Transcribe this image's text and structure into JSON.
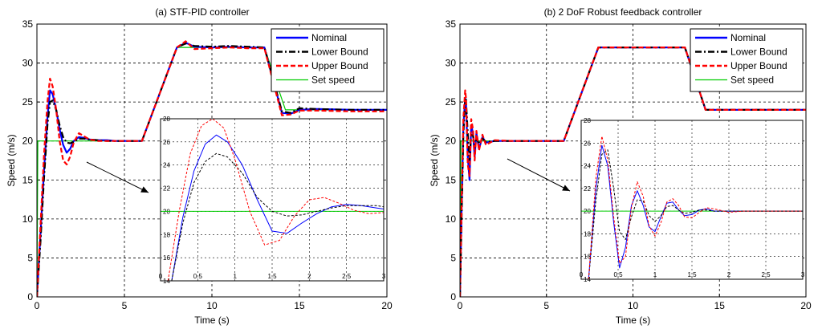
{
  "chart_data": [
    {
      "type": "line",
      "title": "(a) STF-PID controller",
      "xlabel": "Time (s)",
      "ylabel": "Speed (m/s)",
      "xlim": [
        0,
        20
      ],
      "ylim": [
        0,
        35
      ],
      "xticks": [
        "0",
        "5",
        "10",
        "15",
        "20"
      ],
      "yticks": [
        "0",
        "5",
        "10",
        "15",
        "20",
        "25",
        "30",
        "35"
      ],
      "grid": true,
      "legend_position": "top-right",
      "series": [
        {
          "name": "Nominal",
          "color": "#0000ff",
          "style": "solid",
          "x": [
            0,
            0.2,
            0.4,
            0.6,
            0.75,
            0.9,
            1.1,
            1.3,
            1.5,
            1.7,
            1.9,
            2.1,
            2.4,
            2.7,
            3,
            3.5,
            4,
            4.5,
            5,
            5.5,
            6,
            8,
            8.5,
            9,
            10,
            11,
            12,
            13,
            14,
            14.5,
            15,
            16,
            18,
            20
          ],
          "y": [
            0,
            8,
            16,
            23,
            26.5,
            26,
            24,
            21.5,
            19.5,
            18.5,
            19,
            20,
            20.5,
            20.4,
            20.2,
            20.1,
            20.1,
            20,
            20,
            20,
            20,
            32,
            32.6,
            32.1,
            32,
            32.1,
            32,
            32,
            23.6,
            23.5,
            24,
            24.1,
            24,
            24
          ]
        },
        {
          "name": "Lower Bound",
          "color": "#000000",
          "style": "dashdot",
          "x": [
            0,
            0.2,
            0.4,
            0.6,
            0.75,
            0.9,
            1.1,
            1.3,
            1.5,
            1.7,
            1.9,
            2.1,
            2.4,
            2.7,
            3,
            3.5,
            4,
            4.5,
            5,
            5.5,
            6,
            8,
            8.5,
            9,
            10,
            11,
            12,
            13,
            14,
            14.5,
            15,
            16,
            18,
            20
          ],
          "y": [
            0,
            7,
            15,
            22,
            25,
            25.2,
            24,
            22,
            20.5,
            19.8,
            19.7,
            19.9,
            20.3,
            20.3,
            20.2,
            20.1,
            20,
            20,
            20,
            20,
            20,
            32,
            32.5,
            32.2,
            32.1,
            32.2,
            32.1,
            32,
            23.8,
            23.6,
            24.2,
            24.1,
            24,
            24
          ]
        },
        {
          "name": "Upper Bound",
          "color": "#ff0000",
          "style": "dashed",
          "x": [
            0,
            0.2,
            0.4,
            0.6,
            0.75,
            0.9,
            1.1,
            1.3,
            1.5,
            1.7,
            1.9,
            2.1,
            2.4,
            2.7,
            3,
            3.5,
            4,
            4.5,
            5,
            5.5,
            6,
            8,
            8.5,
            9,
            10,
            11,
            12,
            13,
            14,
            14.5,
            15,
            16,
            18,
            20
          ],
          "y": [
            0,
            9,
            18,
            25,
            28,
            27,
            24,
            20,
            17.5,
            17,
            18,
            19.8,
            21,
            20.6,
            20.2,
            20,
            20,
            20,
            20,
            20,
            20,
            32,
            32.8,
            31.8,
            31.9,
            32,
            31.9,
            31.9,
            23.3,
            23.4,
            23.9,
            23.9,
            23.8,
            23.8
          ]
        },
        {
          "name": "Set speed",
          "color": "#00cc00",
          "style": "solid",
          "x": [
            0,
            0.05,
            6,
            8,
            13,
            14.2,
            20
          ],
          "y": [
            0,
            20,
            20,
            32,
            32,
            24,
            24
          ]
        }
      ],
      "inset": {
        "xlim": [
          0,
          3
        ],
        "ylim": [
          14,
          28
        ],
        "xticks": [
          "0",
          "0.5",
          "1",
          "1.5",
          "2",
          "2.5",
          "3"
        ],
        "yticks": [
          "14",
          "16",
          "18",
          "20",
          "22",
          "24",
          "26",
          "28"
        ],
        "series": [
          {
            "name": "Nominal",
            "color": "#0000ff",
            "style": "solid",
            "x": [
              0.15,
              0.3,
              0.45,
              0.6,
              0.75,
              0.9,
              1.1,
              1.3,
              1.5,
              1.7,
              1.9,
              2.1,
              2.3,
              2.5,
              2.7,
              2.9,
              3
            ],
            "y": [
              14,
              19.5,
              23.5,
              25.8,
              26.6,
              26,
              24,
              21,
              18.3,
              18.1,
              19,
              19.8,
              20.4,
              20.6,
              20.5,
              20.3,
              20.2
            ]
          },
          {
            "name": "Lower Bound",
            "color": "#000000",
            "style": "dashed",
            "x": [
              0.15,
              0.3,
              0.45,
              0.6,
              0.75,
              0.9,
              1.1,
              1.3,
              1.5,
              1.7,
              1.9,
              2.1,
              2.3,
              2.5,
              2.7,
              2.9,
              3
            ],
            "y": [
              14,
              19,
              22.5,
              24.3,
              25,
              24.7,
              23.3,
              21.2,
              20,
              19.6,
              19.7,
              20,
              20.3,
              20.5,
              20.5,
              20.5,
              20.4
            ]
          },
          {
            "name": "Upper Bound",
            "color": "#ff0000",
            "style": "dashed",
            "x": [
              0.1,
              0.25,
              0.4,
              0.55,
              0.7,
              0.85,
              1.0,
              1.2,
              1.4,
              1.6,
              1.8,
              2.0,
              2.2,
              2.4,
              2.6,
              2.8,
              3
            ],
            "y": [
              14,
              20,
              25,
              27.4,
              28,
              27.2,
              24.5,
              20,
              17.1,
              17.5,
              19.6,
              21,
              21.2,
              20.7,
              20.1,
              19.8,
              19.9
            ]
          },
          {
            "name": "Set speed",
            "color": "#00cc00",
            "style": "solid",
            "x": [
              0,
              3
            ],
            "y": [
              20,
              20
            ]
          }
        ]
      }
    },
    {
      "type": "line",
      "title": "(b) 2 DoF Robust feedback controller",
      "xlabel": "Time (s)",
      "ylabel": "Speed (m/s)",
      "xlim": [
        0,
        20
      ],
      "ylim": [
        0,
        35
      ],
      "xticks": [
        "0",
        "5",
        "10",
        "15",
        "20"
      ],
      "yticks": [
        "0",
        "5",
        "10",
        "15",
        "20",
        "25",
        "30",
        "35"
      ],
      "grid": true,
      "legend_position": "top-right",
      "series": [
        {
          "name": "Nominal",
          "color": "#0000ff",
          "style": "solid",
          "x": [
            0,
            0.1,
            0.2,
            0.3,
            0.35,
            0.45,
            0.55,
            0.65,
            0.75,
            0.85,
            0.95,
            1.1,
            1.3,
            1.5,
            2,
            3,
            6,
            8,
            13,
            14.2,
            20
          ],
          "y": [
            0,
            12,
            22,
            25.5,
            25,
            18,
            15,
            22,
            21,
            18,
            21,
            19,
            20.5,
            19.8,
            20,
            20,
            20,
            32,
            32,
            24,
            24
          ]
        },
        {
          "name": "Lower Bound",
          "color": "#000000",
          "style": "dashdot",
          "x": [
            0,
            0.1,
            0.2,
            0.3,
            0.35,
            0.45,
            0.55,
            0.65,
            0.75,
            0.85,
            0.95,
            1.1,
            1.3,
            1.5,
            2,
            3,
            6,
            8,
            13,
            14.2,
            20
          ],
          "y": [
            0,
            11,
            21,
            25,
            25.3,
            21,
            17.5,
            20.8,
            20.7,
            19.2,
            20.5,
            19.6,
            20.3,
            19.9,
            20,
            20,
            20,
            32,
            32,
            24,
            24
          ]
        },
        {
          "name": "Upper Bound",
          "color": "#ff0000",
          "style": "dashed",
          "x": [
            0,
            0.1,
            0.2,
            0.3,
            0.35,
            0.45,
            0.55,
            0.65,
            0.75,
            0.85,
            0.95,
            1.1,
            1.3,
            1.5,
            2,
            3,
            6,
            8,
            13,
            14.2,
            20
          ],
          "y": [
            0,
            13,
            23,
            26.5,
            25.5,
            17,
            15.5,
            22.8,
            21.5,
            17.5,
            21.3,
            18.8,
            20.8,
            19.5,
            20.1,
            20,
            20,
            32,
            32,
            24,
            24
          ]
        },
        {
          "name": "Set speed",
          "color": "#00cc00",
          "style": "solid",
          "x": [
            0,
            0.05,
            6,
            8,
            13,
            14.2,
            20
          ],
          "y": [
            0,
            20,
            20,
            32,
            32,
            24,
            24
          ]
        }
      ],
      "inset": {
        "xlim": [
          0,
          3
        ],
        "ylim": [
          14,
          28
        ],
        "xticks": [
          "0",
          "0.5",
          "1",
          "1.5",
          "2",
          "2.5",
          "3"
        ],
        "yticks": [
          "14",
          "16",
          "18",
          "20",
          "22",
          "24",
          "26",
          "28"
        ],
        "series": [
          {
            "name": "Nominal",
            "color": "#0000ff",
            "style": "solid",
            "x": [
              0.1,
              0.2,
              0.28,
              0.36,
              0.44,
              0.52,
              0.6,
              0.68,
              0.76,
              0.84,
              0.92,
              1.0,
              1.08,
              1.16,
              1.24,
              1.32,
              1.4,
              1.5,
              1.6,
              1.7,
              1.8,
              2,
              2.2,
              2.5,
              3
            ],
            "y": [
              14,
              22,
              25.8,
              24,
              19,
              15,
              16.8,
              20.5,
              21.8,
              20.5,
              18.6,
              18.2,
              19.5,
              20.7,
              20.8,
              20.1,
              19.6,
              19.7,
              20.1,
              20.2,
              20,
              20,
              20,
              20,
              20
            ]
          },
          {
            "name": "Lower Bound",
            "color": "#000000",
            "style": "dashed",
            "x": [
              0.1,
              0.2,
              0.28,
              0.36,
              0.44,
              0.52,
              0.6,
              0.68,
              0.76,
              0.84,
              0.92,
              1.0,
              1.08,
              1.16,
              1.24,
              1.32,
              1.4,
              1.5,
              1.6,
              1.7,
              1.8,
              2,
              2.2,
              2.5,
              3
            ],
            "y": [
              14,
              21,
              25,
              25.4,
              22,
              18.2,
              17.5,
              19.5,
              21,
              20.9,
              19.6,
              19.1,
              19.6,
              20.4,
              20.5,
              20.1,
              19.8,
              19.9,
              20.1,
              20.1,
              20,
              20,
              20,
              20,
              20
            ]
          },
          {
            "name": "Upper Bound",
            "color": "#ff0000",
            "style": "dashed",
            "x": [
              0.1,
              0.2,
              0.28,
              0.36,
              0.44,
              0.52,
              0.6,
              0.68,
              0.76,
              0.84,
              0.92,
              1.0,
              1.08,
              1.16,
              1.24,
              1.32,
              1.4,
              1.5,
              1.6,
              1.7,
              1.8,
              2,
              2.2,
              2.5,
              3
            ],
            "y": [
              14,
              23,
              26.6,
              24.5,
              19.5,
              15.4,
              16,
              20.3,
              22.6,
              21.3,
              18.7,
              17.8,
              19,
              20.8,
              21.1,
              20.5,
              19.5,
              19.4,
              19.9,
              20.3,
              20.2,
              19.9,
              20,
              20,
              20
            ]
          },
          {
            "name": "Set speed",
            "color": "#00cc00",
            "style": "solid",
            "x": [
              0,
              3
            ],
            "y": [
              20,
              20
            ]
          }
        ]
      }
    }
  ]
}
